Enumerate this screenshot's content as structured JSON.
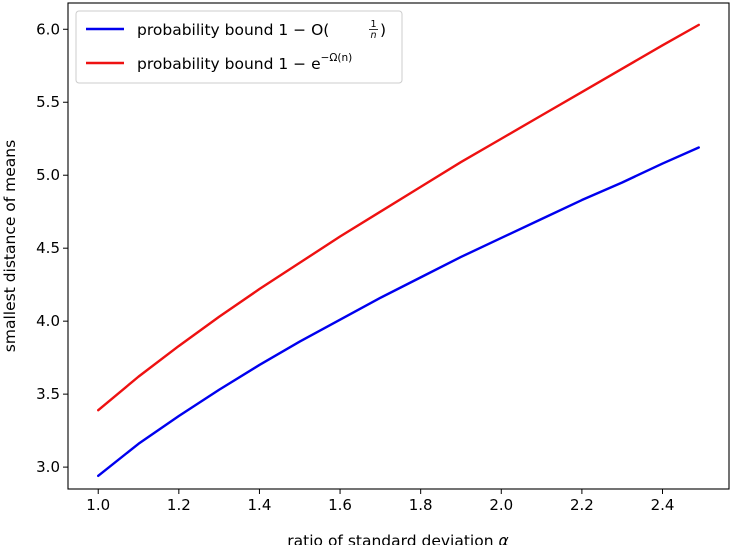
{
  "chart_data": {
    "type": "line",
    "title": "",
    "xlabel": "ratio of standard deviation",
    "xlabel_symbol": "α",
    "ylabel": "smallest distance of means",
    "xlim": [
      0.925,
      2.565
    ],
    "ylim": [
      2.85,
      6.18
    ],
    "xticks": [
      1.0,
      1.2,
      1.4,
      1.6,
      1.8,
      2.0,
      2.2,
      2.4
    ],
    "xtick_labels": [
      "1.0",
      "1.2",
      "1.4",
      "1.6",
      "1.8",
      "2.0",
      "2.2",
      "2.4"
    ],
    "yticks": [
      3.0,
      3.5,
      4.0,
      4.5,
      5.0,
      5.5,
      6.0
    ],
    "ytick_labels": [
      "3.0",
      "3.5",
      "4.0",
      "4.5",
      "5.0",
      "5.5",
      "6.0"
    ],
    "grid": false,
    "legend_position": "top-left",
    "x": [
      1.0,
      1.1,
      1.2,
      1.3,
      1.4,
      1.5,
      1.6,
      1.7,
      1.8,
      1.9,
      2.0,
      2.1,
      2.2,
      2.3,
      2.4,
      2.49
    ],
    "series": [
      {
        "name": "probability bound 1 − O(1/n)",
        "legend_prefix": "probability bound 1 − O(",
        "legend_frac_num": "1",
        "legend_frac_den": "n",
        "legend_suffix": ")",
        "color": "#0000ee",
        "values": [
          2.94,
          3.16,
          3.35,
          3.53,
          3.7,
          3.86,
          4.01,
          4.16,
          4.3,
          4.44,
          4.57,
          4.7,
          4.83,
          4.95,
          5.08,
          5.19
        ]
      },
      {
        "name": "probability bound 1 − e^{−Ω(n)}",
        "legend_prefix": "probability bound 1 − e",
        "legend_sup": "−Ω(n)",
        "color": "#ee1111",
        "values": [
          3.39,
          3.62,
          3.83,
          4.03,
          4.22,
          4.4,
          4.58,
          4.75,
          4.92,
          5.09,
          5.25,
          5.41,
          5.57,
          5.73,
          5.89,
          6.03
        ]
      }
    ]
  }
}
